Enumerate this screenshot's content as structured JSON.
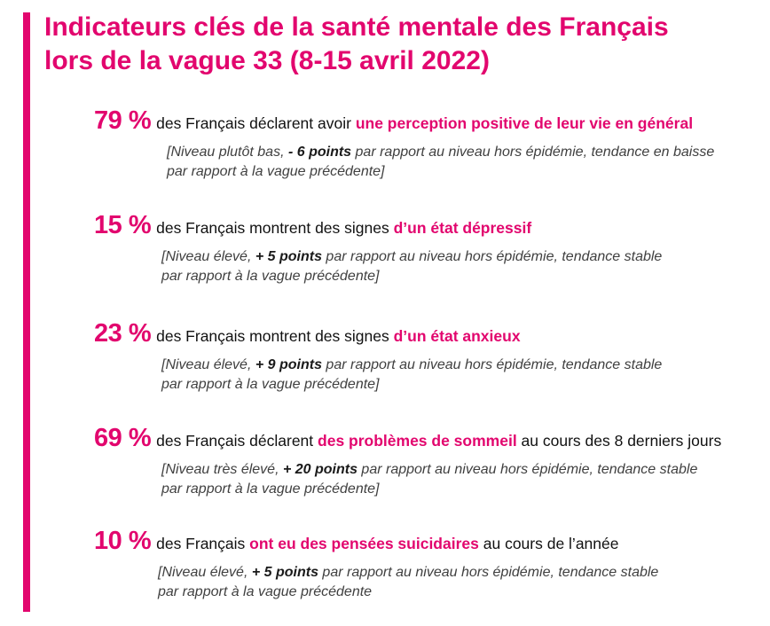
{
  "title": {
    "line1": "Indicateurs clés de la santé mentale des Français",
    "line2": "lors de la vague 33 (8-15 avril 2022)"
  },
  "colors": {
    "accent": "#e2066e",
    "text": "#111111",
    "note": "#404040"
  },
  "indicators": [
    {
      "percent": "79 %",
      "text_before": "des Français déclarent avoir ",
      "highlight": "une perception positive de leur vie en général",
      "text_after": "",
      "note_before": "[Niveau plutôt bas, ",
      "note_bold": "- 6 points",
      "note_after": " par rapport au niveau hors épidémie, tendance en baisse",
      "note_line2": "par rapport à la vague précédente]"
    },
    {
      "percent": "15 %",
      "text_before": "des Français montrent des signes ",
      "highlight": "d’un état dépressif",
      "text_after": "",
      "note_before": "[Niveau élevé, ",
      "note_bold": "+ 5 points",
      "note_after": " par rapport au niveau hors épidémie, tendance stable",
      "note_line2": "par rapport à la vague précédente]"
    },
    {
      "percent": "23 %",
      "text_before": "des Français montrent des signes ",
      "highlight": "d’un état anxieux",
      "text_after": "",
      "note_before": "[Niveau élevé, ",
      "note_bold": "+ 9 points",
      "note_after": " par rapport au niveau hors épidémie, tendance stable",
      "note_line2": "par rapport à la vague précédente]"
    },
    {
      "percent": "69 %",
      "text_before": "des Français déclarent ",
      "highlight": "des problèmes de sommeil",
      "text_after": " au cours des 8 derniers jours",
      "note_before": "[Niveau très élevé, ",
      "note_bold": "+ 20 points",
      "note_after": " par rapport au niveau hors épidémie, tendance stable",
      "note_line2": "par rapport à la vague précédente]"
    },
    {
      "percent": "10 %",
      "text_before": "des Français ",
      "highlight": "ont eu des pensées suicidaires",
      "text_after": " au cours de l’année",
      "note_before": "[Niveau élevé, ",
      "note_bold": "+ 5 points",
      "note_after": " par rapport au niveau hors épidémie, tendance stable",
      "note_line2": "par rapport à la vague précédente"
    }
  ]
}
